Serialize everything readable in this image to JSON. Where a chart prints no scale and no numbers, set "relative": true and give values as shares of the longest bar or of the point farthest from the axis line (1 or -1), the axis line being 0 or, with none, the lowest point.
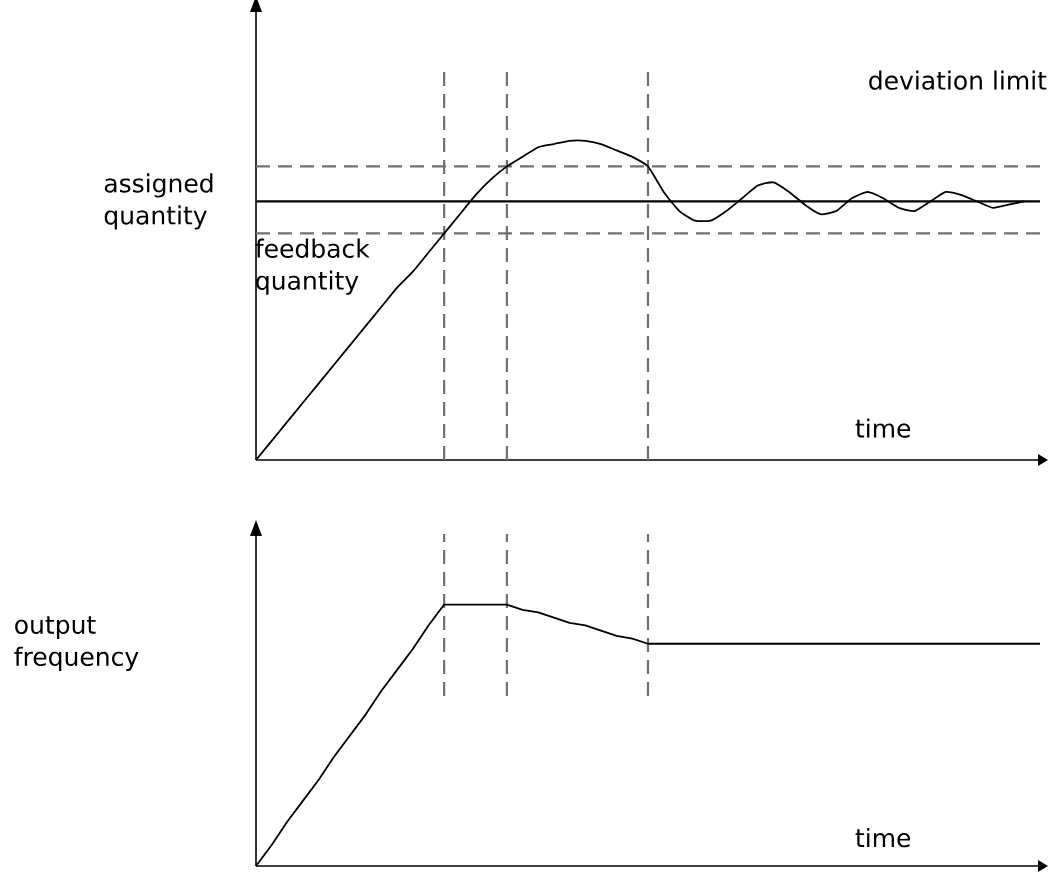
{
  "chart_data": [
    {
      "type": "line",
      "relative": true,
      "xlabel": "time",
      "legend": "top left",
      "grid": "x",
      "categories": [
        null,
        null,
        null,
        null,
        null,
        null,
        null,
        null,
        null,
        null,
        null,
        null,
        null,
        null,
        null,
        null,
        null,
        null,
        null,
        null,
        null,
        null,
        null,
        null,
        null,
        null,
        null,
        null,
        null,
        null,
        null,
        null,
        null,
        null,
        null,
        null,
        null,
        null,
        null,
        null,
        null,
        null,
        null,
        null,
        null,
        null,
        null,
        null,
        null,
        null,
        null
      ],
      "series": [
        {
          "name": "feedback quantity",
          "color": "#000000",
          "line_style": "solid",
          "values": [
            0,
            0.06,
            0.12,
            0.18,
            0.24,
            0.3,
            0.36,
            0.42,
            0.48,
            0.54,
            0.59,
            0.65,
            0.71,
            0.77,
            0.83,
            0.88,
            0.92,
            0.95,
            0.98,
            0.99,
            1.0,
            1.0,
            0.99,
            0.97,
            0.95,
            0.92,
            0.84,
            0.78,
            0.75,
            0.75,
            0.78,
            0.82,
            0.86,
            0.87,
            0.84,
            0.8,
            0.77,
            0.78,
            0.82,
            0.84,
            0.82,
            0.79,
            0.78,
            0.81,
            0.84,
            0.83,
            0.81,
            0.79,
            0.8,
            0.81,
            null
          ]
        }
      ],
      "ref_lines": [
        {
          "axis": "y",
          "value": 0.81,
          "label": "assigned quantity",
          "color": "#000000",
          "line_style": "solid"
        },
        {
          "axis": "y",
          "value": 0.92,
          "color": "#707070",
          "line_style": "dashed"
        },
        {
          "axis": "y",
          "value": 0.71,
          "color": "#707070",
          "line_style": "dashed"
        }
      ],
      "annotations": [
        "deviation limit"
      ]
    },
    {
      "type": "line",
      "relative": true,
      "xlabel": "time",
      "ylabel": "output frequency",
      "legend": false,
      "grid": "x",
      "categories": [
        null,
        null,
        null,
        null,
        null,
        null,
        null,
        null,
        null,
        null,
        null,
        null,
        null,
        null,
        null,
        null,
        null,
        null,
        null,
        null,
        null,
        null,
        null,
        null,
        null,
        null,
        null,
        null,
        null,
        null,
        null,
        null,
        null,
        null,
        null,
        null,
        null,
        null,
        null,
        null,
        null,
        null,
        null,
        null,
        null,
        null,
        null,
        null,
        null,
        null,
        null
      ],
      "series": [
        {
          "color": "#000000",
          "line_style": "solid",
          "values": [
            0,
            0.08,
            0.17,
            0.25,
            0.33,
            0.42,
            0.5,
            0.58,
            0.67,
            0.75,
            0.83,
            0.92,
            1.0,
            1.0,
            1.0,
            1.0,
            1.0,
            0.98,
            0.97,
            0.95,
            0.93,
            0.92,
            0.9,
            0.88,
            0.87,
            0.85,
            0.85,
            0.85,
            0.85,
            0.85,
            0.85,
            0.85,
            0.85,
            0.85,
            0.85,
            0.85,
            0.85,
            0.85,
            0.85,
            0.85,
            0.85,
            0.85,
            0.85,
            0.85,
            0.85,
            0.85,
            0.85,
            0.85,
            0.85,
            0.85,
            0.85
          ]
        }
      ]
    }
  ]
}
